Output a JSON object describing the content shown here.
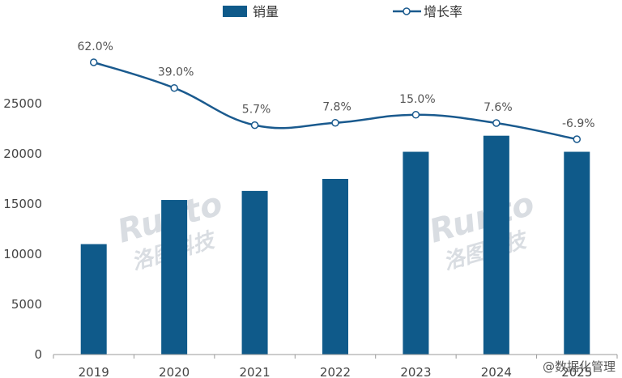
{
  "chart_data": {
    "type": "bar",
    "categories": [
      "2019",
      "2020",
      "2021",
      "2022",
      "2023",
      "2024",
      "2025"
    ],
    "series": [
      {
        "name": "销量",
        "type": "bar",
        "color": "#0f5a8a",
        "axis": "left",
        "values": [
          11000,
          15400,
          16300,
          17500,
          20200,
          21800,
          20200
        ]
      },
      {
        "name": "增长率",
        "type": "line",
        "color": "#1a5a8e",
        "axis": "right",
        "unit": "%",
        "values": [
          62.0,
          39.0,
          5.7,
          7.8,
          15.0,
          7.6,
          -6.9
        ],
        "labels": [
          "62.0%",
          "39.0%",
          "5.7%",
          "7.8%",
          "15.0%",
          "7.6%",
          "-6.9%"
        ]
      }
    ],
    "yticks": [
      "0",
      "5000",
      "10000",
      "15000",
      "20000",
      "25000"
    ],
    "ylim": [
      0,
      30000
    ],
    "right_axis_hidden": true,
    "legend_position": "top-center",
    "grid": false
  },
  "watermark": {
    "brand": "Runto",
    "name_cn": "洛图科技"
  },
  "corner_mark": "@数据化管理"
}
